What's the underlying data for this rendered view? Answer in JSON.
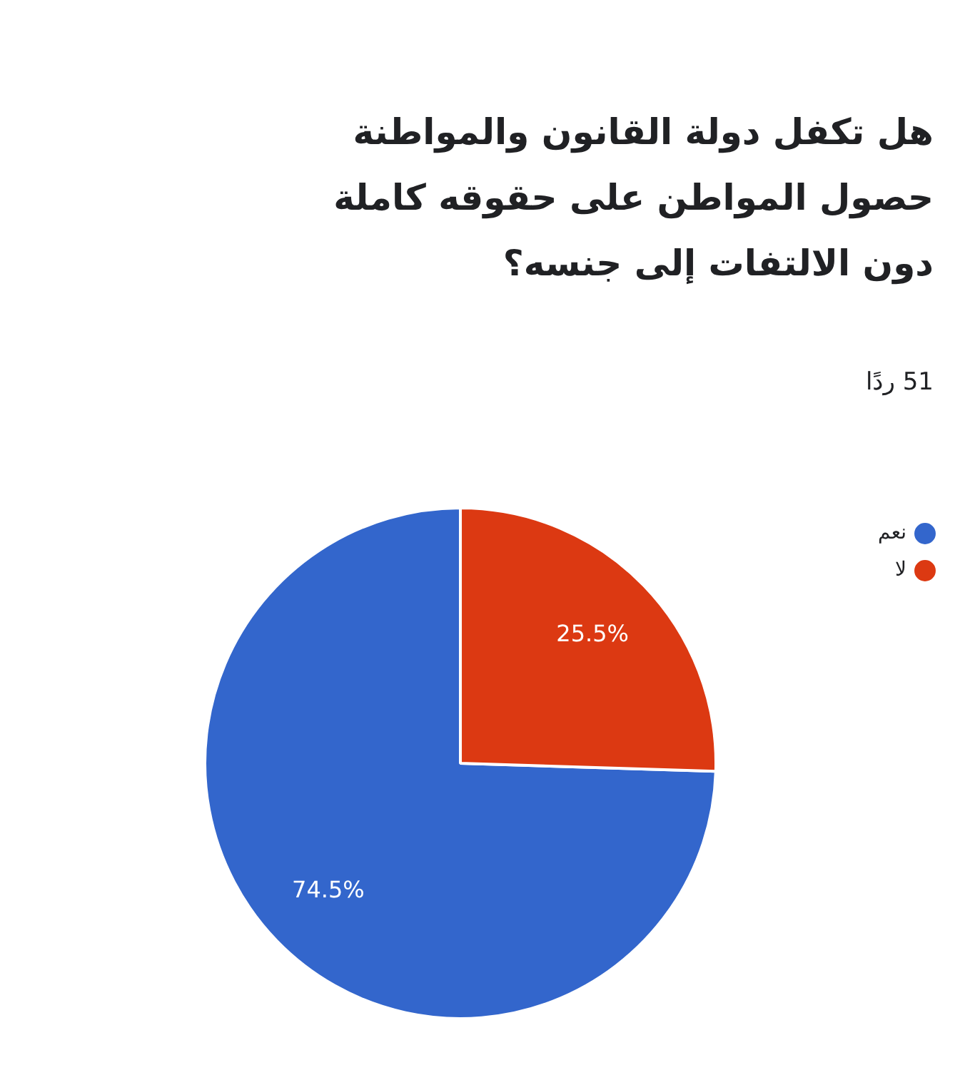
{
  "chart_data": {
    "type": "pie",
    "title": "هل تكفل دولة القانون والمواطنة حصول المواطن على حقوقه كاملة دون الالتفات إلى جنسه؟",
    "subtitle": "51 ردًا",
    "categories": [
      "نعم",
      "لا"
    ],
    "values": [
      74.5,
      25.5
    ],
    "colors": [
      "#3366cc",
      "#dc3912"
    ],
    "value_labels": [
      "74.5%",
      "25.5%"
    ],
    "legend": "top right"
  }
}
